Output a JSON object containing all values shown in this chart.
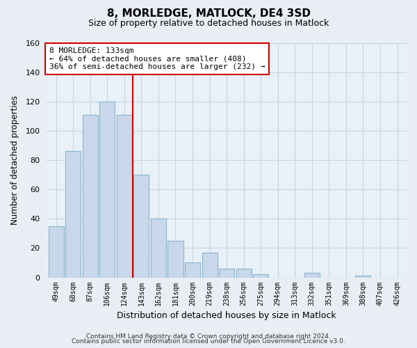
{
  "title": "8, MORLEDGE, MATLOCK, DE4 3SD",
  "subtitle": "Size of property relative to detached houses in Matlock",
  "xlabel": "Distribution of detached houses by size in Matlock",
  "ylabel": "Number of detached properties",
  "bar_labels": [
    "49sqm",
    "68sqm",
    "87sqm",
    "106sqm",
    "124sqm",
    "143sqm",
    "162sqm",
    "181sqm",
    "200sqm",
    "219sqm",
    "238sqm",
    "256sqm",
    "275sqm",
    "294sqm",
    "313sqm",
    "332sqm",
    "351sqm",
    "369sqm",
    "388sqm",
    "407sqm",
    "426sqm"
  ],
  "bar_values": [
    35,
    86,
    111,
    120,
    111,
    70,
    40,
    25,
    10,
    17,
    6,
    6,
    2,
    0,
    0,
    3,
    0,
    0,
    1,
    0,
    0
  ],
  "bar_color": "#c8d8ea",
  "bar_edge_color": "#8ab4cc",
  "reference_line_x": 4.5,
  "reference_line_color": "#cc0000",
  "annotation_line1": "8 MORLEDGE: 133sqm",
  "annotation_line2": "← 64% of detached houses are smaller (408)",
  "annotation_line3": "36% of semi-detached houses are larger (232) →",
  "annotation_box_color": "#ffffff",
  "annotation_box_edge_color": "#cc0000",
  "ylim": [
    0,
    160
  ],
  "yticks": [
    0,
    20,
    40,
    60,
    80,
    100,
    120,
    140,
    160
  ],
  "footer_line1": "Contains HM Land Registry data © Crown copyright and database right 2024.",
  "footer_line2": "Contains public sector information licensed under the Open Government Licence v3.0.",
  "bg_color": "#e8eef4",
  "plot_bg_color": "#e8f0f8",
  "grid_color": "#c8d4e0"
}
